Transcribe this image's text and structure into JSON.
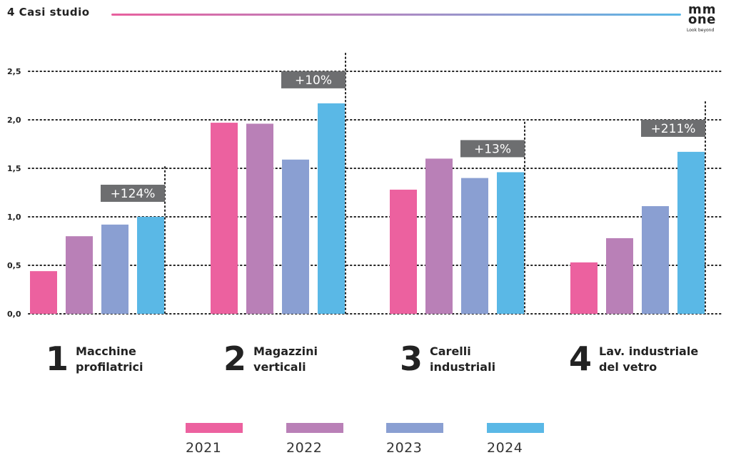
{
  "header": {
    "title": "4 Casi studio"
  },
  "logo": {
    "line1": "mm",
    "line2": "one",
    "tagline": "Look beyond"
  },
  "chart_data": {
    "type": "bar",
    "title": "4 Casi studio",
    "categories": [
      "Macchine profilatrici",
      "Magazzini verticali",
      "Carelli industriali",
      "Lav. industriale del vetro"
    ],
    "series": [
      {
        "name": "2021",
        "color": "#ec619f",
        "values": [
          0.44,
          1.97,
          1.28,
          0.53
        ]
      },
      {
        "name": "2022",
        "color": "#b980b7",
        "values": [
          0.8,
          1.96,
          1.6,
          0.78
        ]
      },
      {
        "name": "2023",
        "color": "#8a9fd2",
        "values": [
          0.92,
          1.59,
          1.4,
          1.11
        ]
      },
      {
        "name": "2024",
        "color": "#5ab8e6",
        "values": [
          1.0,
          2.17,
          1.46,
          1.67
        ]
      }
    ],
    "growth_labels": [
      "+124%",
      "+10%",
      "+13%",
      "+211%"
    ],
    "ylim": [
      0,
      2.5
    ],
    "yticks": [
      0,
      0.5,
      1.0,
      1.5,
      2.0,
      2.5
    ],
    "ytick_labels": [
      "0,0",
      "0,5",
      "1,0",
      "1,5",
      "2,0",
      "2,5"
    ],
    "grid": true,
    "legend_position": "bottom"
  },
  "categories_display": [
    {
      "number": "1",
      "line1": "Macchine",
      "line2": "profilatrici"
    },
    {
      "number": "2",
      "line1": "Magazzini",
      "line2": "verticali"
    },
    {
      "number": "3",
      "line1": "Carelli",
      "line2": "industriali"
    },
    {
      "number": "4",
      "line1": "Lav. industriale",
      "line2": "del vetro"
    }
  ],
  "legend": [
    {
      "label": "2021",
      "color": "#ec619f"
    },
    {
      "label": "2022",
      "color": "#b980b7"
    },
    {
      "label": "2023",
      "color": "#8a9fd2"
    },
    {
      "label": "2024",
      "color": "#5ab8e6"
    }
  ]
}
